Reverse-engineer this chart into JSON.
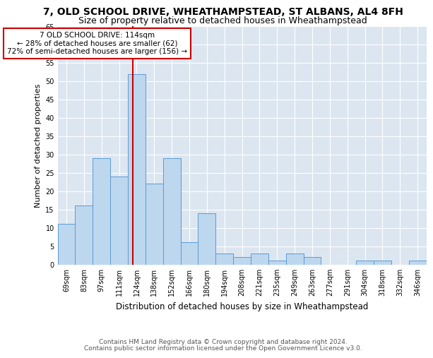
{
  "title1": "7, OLD SCHOOL DRIVE, WHEATHAMPSTEAD, ST ALBANS, AL4 8FH",
  "title2": "Size of property relative to detached houses in Wheathampstead",
  "xlabel": "Distribution of detached houses by size in Wheathampstead",
  "ylabel": "Number of detached properties",
  "categories": [
    "69sqm",
    "83sqm",
    "97sqm",
    "111sqm",
    "124sqm",
    "138sqm",
    "152sqm",
    "166sqm",
    "180sqm",
    "194sqm",
    "208sqm",
    "221sqm",
    "235sqm",
    "249sqm",
    "263sqm",
    "277sqm",
    "291sqm",
    "304sqm",
    "318sqm",
    "332sqm",
    "346sqm"
  ],
  "values": [
    11,
    16,
    29,
    24,
    52,
    22,
    29,
    6,
    14,
    3,
    2,
    3,
    1,
    3,
    2,
    0,
    0,
    1,
    1,
    0,
    1
  ],
  "bar_color": "#bdd7ee",
  "bar_edge_color": "#5b9bd5",
  "vline_position": 3.77,
  "vline_color": "#cc0000",
  "annotation_title": "7 OLD SCHOOL DRIVE: 114sqm",
  "annotation_line1": "← 28% of detached houses are smaller (62)",
  "annotation_line2": "72% of semi-detached houses are larger (156) →",
  "annotation_box_color": "#ffffff",
  "annotation_box_edge": "#cc0000",
  "ylim": [
    0,
    65
  ],
  "yticks": [
    0,
    5,
    10,
    15,
    20,
    25,
    30,
    35,
    40,
    45,
    50,
    55,
    60,
    65
  ],
  "plot_bg_color": "#dce6f1",
  "footer1": "Contains HM Land Registry data © Crown copyright and database right 2024.",
  "footer2": "Contains public sector information licensed under the Open Government Licence v3.0.",
  "title1_fontsize": 10,
  "title2_fontsize": 9,
  "xlabel_fontsize": 8.5,
  "ylabel_fontsize": 8,
  "tick_fontsize": 7,
  "annot_fontsize": 7.5,
  "footer_fontsize": 6.5
}
